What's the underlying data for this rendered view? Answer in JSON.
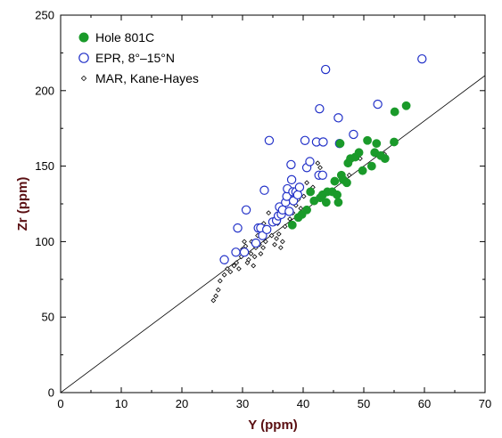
{
  "chart_data": {
    "type": "scatter",
    "xlabel": "Y (ppm)",
    "ylabel": "Zr (ppm)",
    "xlim": [
      0,
      70
    ],
    "ylim": [
      0,
      250
    ],
    "x_ticks": [
      "0",
      "10",
      "20",
      "30",
      "40",
      "50",
      "60",
      "70"
    ],
    "y_ticks": [
      "0",
      "50",
      "100",
      "150",
      "200",
      "250"
    ],
    "grid": false,
    "legend_placement": "top-left",
    "reference_line": {
      "x": [
        0,
        70
      ],
      "y": [
        0,
        210
      ]
    },
    "series": [
      {
        "name": "Hole 801C",
        "marker": "filled-circle",
        "color": "#1a9a2a",
        "points": [
          [
            38.2,
            111
          ],
          [
            39.2,
            116
          ],
          [
            39.8,
            118
          ],
          [
            40.6,
            121
          ],
          [
            41.2,
            133
          ],
          [
            41.8,
            127
          ],
          [
            42.8,
            129
          ],
          [
            43.2,
            131
          ],
          [
            43.8,
            126
          ],
          [
            44.0,
            133
          ],
          [
            44.8,
            133
          ],
          [
            45.2,
            140
          ],
          [
            45.6,
            131
          ],
          [
            45.8,
            126
          ],
          [
            46.1,
            165
          ],
          [
            46.3,
            144
          ],
          [
            46.6,
            141
          ],
          [
            47.2,
            139
          ],
          [
            47.4,
            152
          ],
          [
            47.8,
            155
          ],
          [
            48.6,
            156
          ],
          [
            49.2,
            159
          ],
          [
            49.8,
            147
          ],
          [
            50.6,
            167
          ],
          [
            51.3,
            150
          ],
          [
            51.8,
            159
          ],
          [
            52.1,
            165
          ],
          [
            52.8,
            157
          ],
          [
            53.5,
            155
          ],
          [
            55.0,
            166
          ],
          [
            55.1,
            186
          ],
          [
            57.0,
            190
          ]
        ]
      },
      {
        "name": "EPR, 8°–15°N",
        "marker": "open-circle",
        "color": "#2231c8",
        "points": [
          [
            27.0,
            88
          ],
          [
            28.9,
            93
          ],
          [
            29.2,
            109
          ],
          [
            30.3,
            93
          ],
          [
            30.6,
            121
          ],
          [
            32.2,
            99
          ],
          [
            32.6,
            109
          ],
          [
            33.0,
            109
          ],
          [
            33.3,
            104
          ],
          [
            33.6,
            134
          ],
          [
            34.0,
            108
          ],
          [
            34.4,
            167
          ],
          [
            35.0,
            113
          ],
          [
            35.6,
            114
          ],
          [
            35.9,
            117
          ],
          [
            36.1,
            123
          ],
          [
            36.4,
            118
          ],
          [
            36.6,
            121
          ],
          [
            37.1,
            126
          ],
          [
            37.3,
            130
          ],
          [
            37.4,
            135
          ],
          [
            37.7,
            120
          ],
          [
            38.0,
            151
          ],
          [
            38.1,
            141
          ],
          [
            38.3,
            133
          ],
          [
            38.4,
            127
          ],
          [
            38.8,
            133
          ],
          [
            39.1,
            131
          ],
          [
            39.4,
            136
          ],
          [
            40.3,
            167
          ],
          [
            40.6,
            149
          ],
          [
            41.1,
            153
          ],
          [
            42.2,
            166
          ],
          [
            42.6,
            144
          ],
          [
            42.7,
            188
          ],
          [
            43.2,
            144
          ],
          [
            43.3,
            166
          ],
          [
            43.7,
            214
          ],
          [
            45.8,
            182
          ],
          [
            46.0,
            165
          ],
          [
            48.3,
            171
          ],
          [
            52.3,
            191
          ],
          [
            59.6,
            221
          ]
        ]
      },
      {
        "name": "MAR, Kane-Hayes",
        "marker": "small-open-diamond",
        "color": "#000000",
        "points": [
          [
            25.2,
            61
          ],
          [
            25.6,
            64
          ],
          [
            26.0,
            68
          ],
          [
            26.3,
            74
          ],
          [
            27.0,
            78
          ],
          [
            27.5,
            82
          ],
          [
            28.0,
            80
          ],
          [
            28.6,
            84
          ],
          [
            29.0,
            86
          ],
          [
            29.4,
            82
          ],
          [
            29.8,
            90
          ],
          [
            30.0,
            95
          ],
          [
            30.3,
            100
          ],
          [
            30.5,
            97
          ],
          [
            30.8,
            86
          ],
          [
            31.0,
            88
          ],
          [
            31.4,
            92
          ],
          [
            31.5,
            100
          ],
          [
            31.8,
            84
          ],
          [
            32.0,
            90
          ],
          [
            32.2,
            96
          ],
          [
            32.5,
            104
          ],
          [
            32.8,
            98
          ],
          [
            33.0,
            92
          ],
          [
            33.4,
            96
          ],
          [
            33.5,
            112
          ],
          [
            33.8,
            100
          ],
          [
            34.0,
            108
          ],
          [
            34.3,
            119
          ],
          [
            34.8,
            104
          ],
          [
            35.3,
            98
          ],
          [
            35.6,
            102
          ],
          [
            35.8,
            112
          ],
          [
            36.0,
            105
          ],
          [
            36.3,
            96
          ],
          [
            36.6,
            100
          ],
          [
            37.0,
            110
          ],
          [
            37.4,
            126
          ],
          [
            37.8,
            115
          ],
          [
            38.3,
            119
          ],
          [
            38.8,
            124
          ],
          [
            39.2,
            128
          ],
          [
            39.6,
            122
          ],
          [
            40.1,
            130
          ],
          [
            40.6,
            139
          ],
          [
            41.6,
            136
          ],
          [
            42.4,
            152
          ],
          [
            42.8,
            149
          ],
          [
            45.6,
            131
          ],
          [
            47.6,
            144
          ],
          [
            49.4,
            155
          ],
          [
            53.4,
            158
          ]
        ]
      }
    ]
  }
}
